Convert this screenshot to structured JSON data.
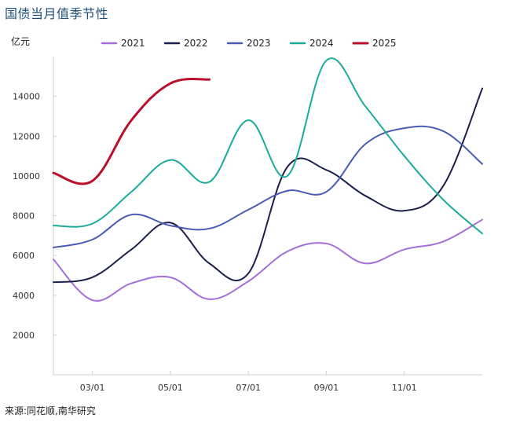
{
  "page": {
    "title": "国债当月值季节性",
    "unit": "亿元",
    "source": "来源:同花顺,南华研究"
  },
  "chart_data": {
    "type": "line",
    "title": "国债当月值季节性",
    "ylabel": "亿元",
    "xlabel": "",
    "ylim": [
      0,
      16000
    ],
    "yticks": [
      2000,
      4000,
      6000,
      8000,
      10000,
      12000,
      14000
    ],
    "xlim": [
      1,
      12
    ],
    "xticks": [
      {
        "value": 2,
        "label": "03/01"
      },
      {
        "value": 4,
        "label": "05/01"
      },
      {
        "value": 6,
        "label": "07/01"
      },
      {
        "value": 8,
        "label": "09/01"
      },
      {
        "value": 10,
        "label": "11/01"
      }
    ],
    "legend_position": "top",
    "grid": false,
    "series": [
      {
        "name": "2021",
        "color": "#a56ed8",
        "x": [
          1,
          2,
          3,
          4,
          5,
          6,
          7,
          8,
          9,
          10,
          11,
          12
        ],
        "values": [
          5800,
          3750,
          4600,
          4900,
          3800,
          4700,
          6200,
          6600,
          5600,
          6300,
          6700,
          7800
        ]
      },
      {
        "name": "2022",
        "color": "#1b1f4b",
        "x": [
          1,
          2,
          3,
          4,
          5,
          6,
          7,
          8,
          9,
          10,
          11,
          12
        ],
        "values": [
          4650,
          4900,
          6300,
          7650,
          5600,
          5100,
          10450,
          10300,
          9000,
          8250,
          9500,
          14400
        ]
      },
      {
        "name": "2023",
        "color": "#4a5bb5",
        "x": [
          1,
          2,
          3,
          4,
          5,
          6,
          7,
          8,
          9,
          10,
          11,
          12
        ],
        "values": [
          6400,
          6800,
          8050,
          7500,
          7350,
          8300,
          9250,
          9200,
          11600,
          12400,
          12250,
          10600
        ]
      },
      {
        "name": "2024",
        "color": "#1aab9b",
        "x": [
          1,
          2,
          3,
          4,
          5,
          6,
          7,
          8,
          9,
          10,
          11,
          12
        ],
        "values": [
          7500,
          7600,
          9200,
          10800,
          9700,
          12800,
          10000,
          15800,
          13500,
          11000,
          8800,
          7100
        ]
      },
      {
        "name": "2025",
        "color": "#b8102c",
        "x": [
          1,
          2,
          3,
          4,
          5
        ],
        "values": [
          10150,
          9750,
          12800,
          14650,
          14850
        ]
      }
    ]
  }
}
